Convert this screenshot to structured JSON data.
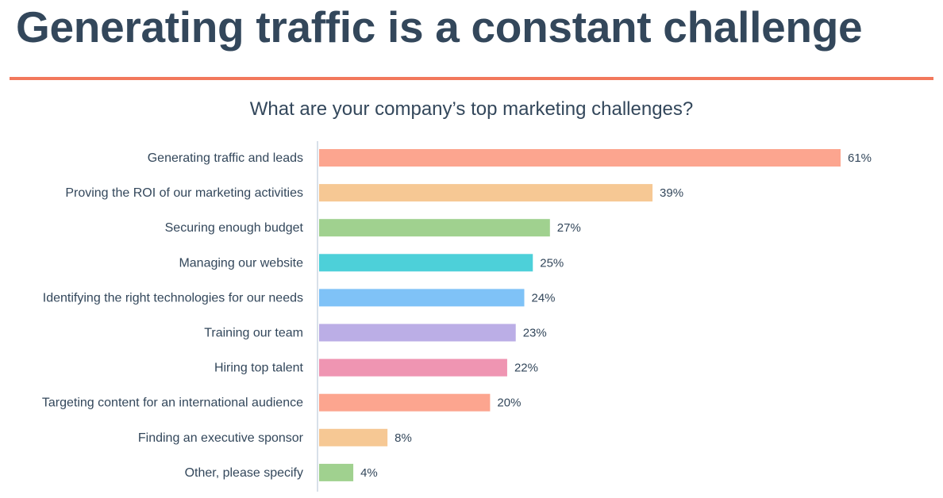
{
  "header": {
    "title": "Generating traffic is a constant challenge"
  },
  "chart_data": {
    "type": "bar",
    "orientation": "horizontal",
    "title": "What are your company’s top marketing challenges?",
    "categories": [
      "Generating traffic and leads",
      "Proving the ROI of our marketing activities",
      "Securing enough budget",
      "Managing our website",
      "Identifying the right technologies for our needs",
      "Training our team",
      "Hiring top talent",
      "Targeting content for an international audience",
      "Finding an executive sponsor",
      "Other, please specify"
    ],
    "values": [
      61,
      39,
      27,
      25,
      24,
      23,
      22,
      20,
      8,
      4
    ],
    "value_labels": [
      "61%",
      "39%",
      "27%",
      "25%",
      "24%",
      "23%",
      "22%",
      "20%",
      "8%",
      "4%"
    ],
    "colors": [
      "#fca58f",
      "#f6c894",
      "#a0d18f",
      "#4dd0d9",
      "#7fc2f7",
      "#bbaee6",
      "#ef95b2",
      "#fca58f",
      "#f6c894",
      "#a0d18f"
    ],
    "xlim": [
      0,
      61
    ],
    "grid": false,
    "legend": "none"
  }
}
